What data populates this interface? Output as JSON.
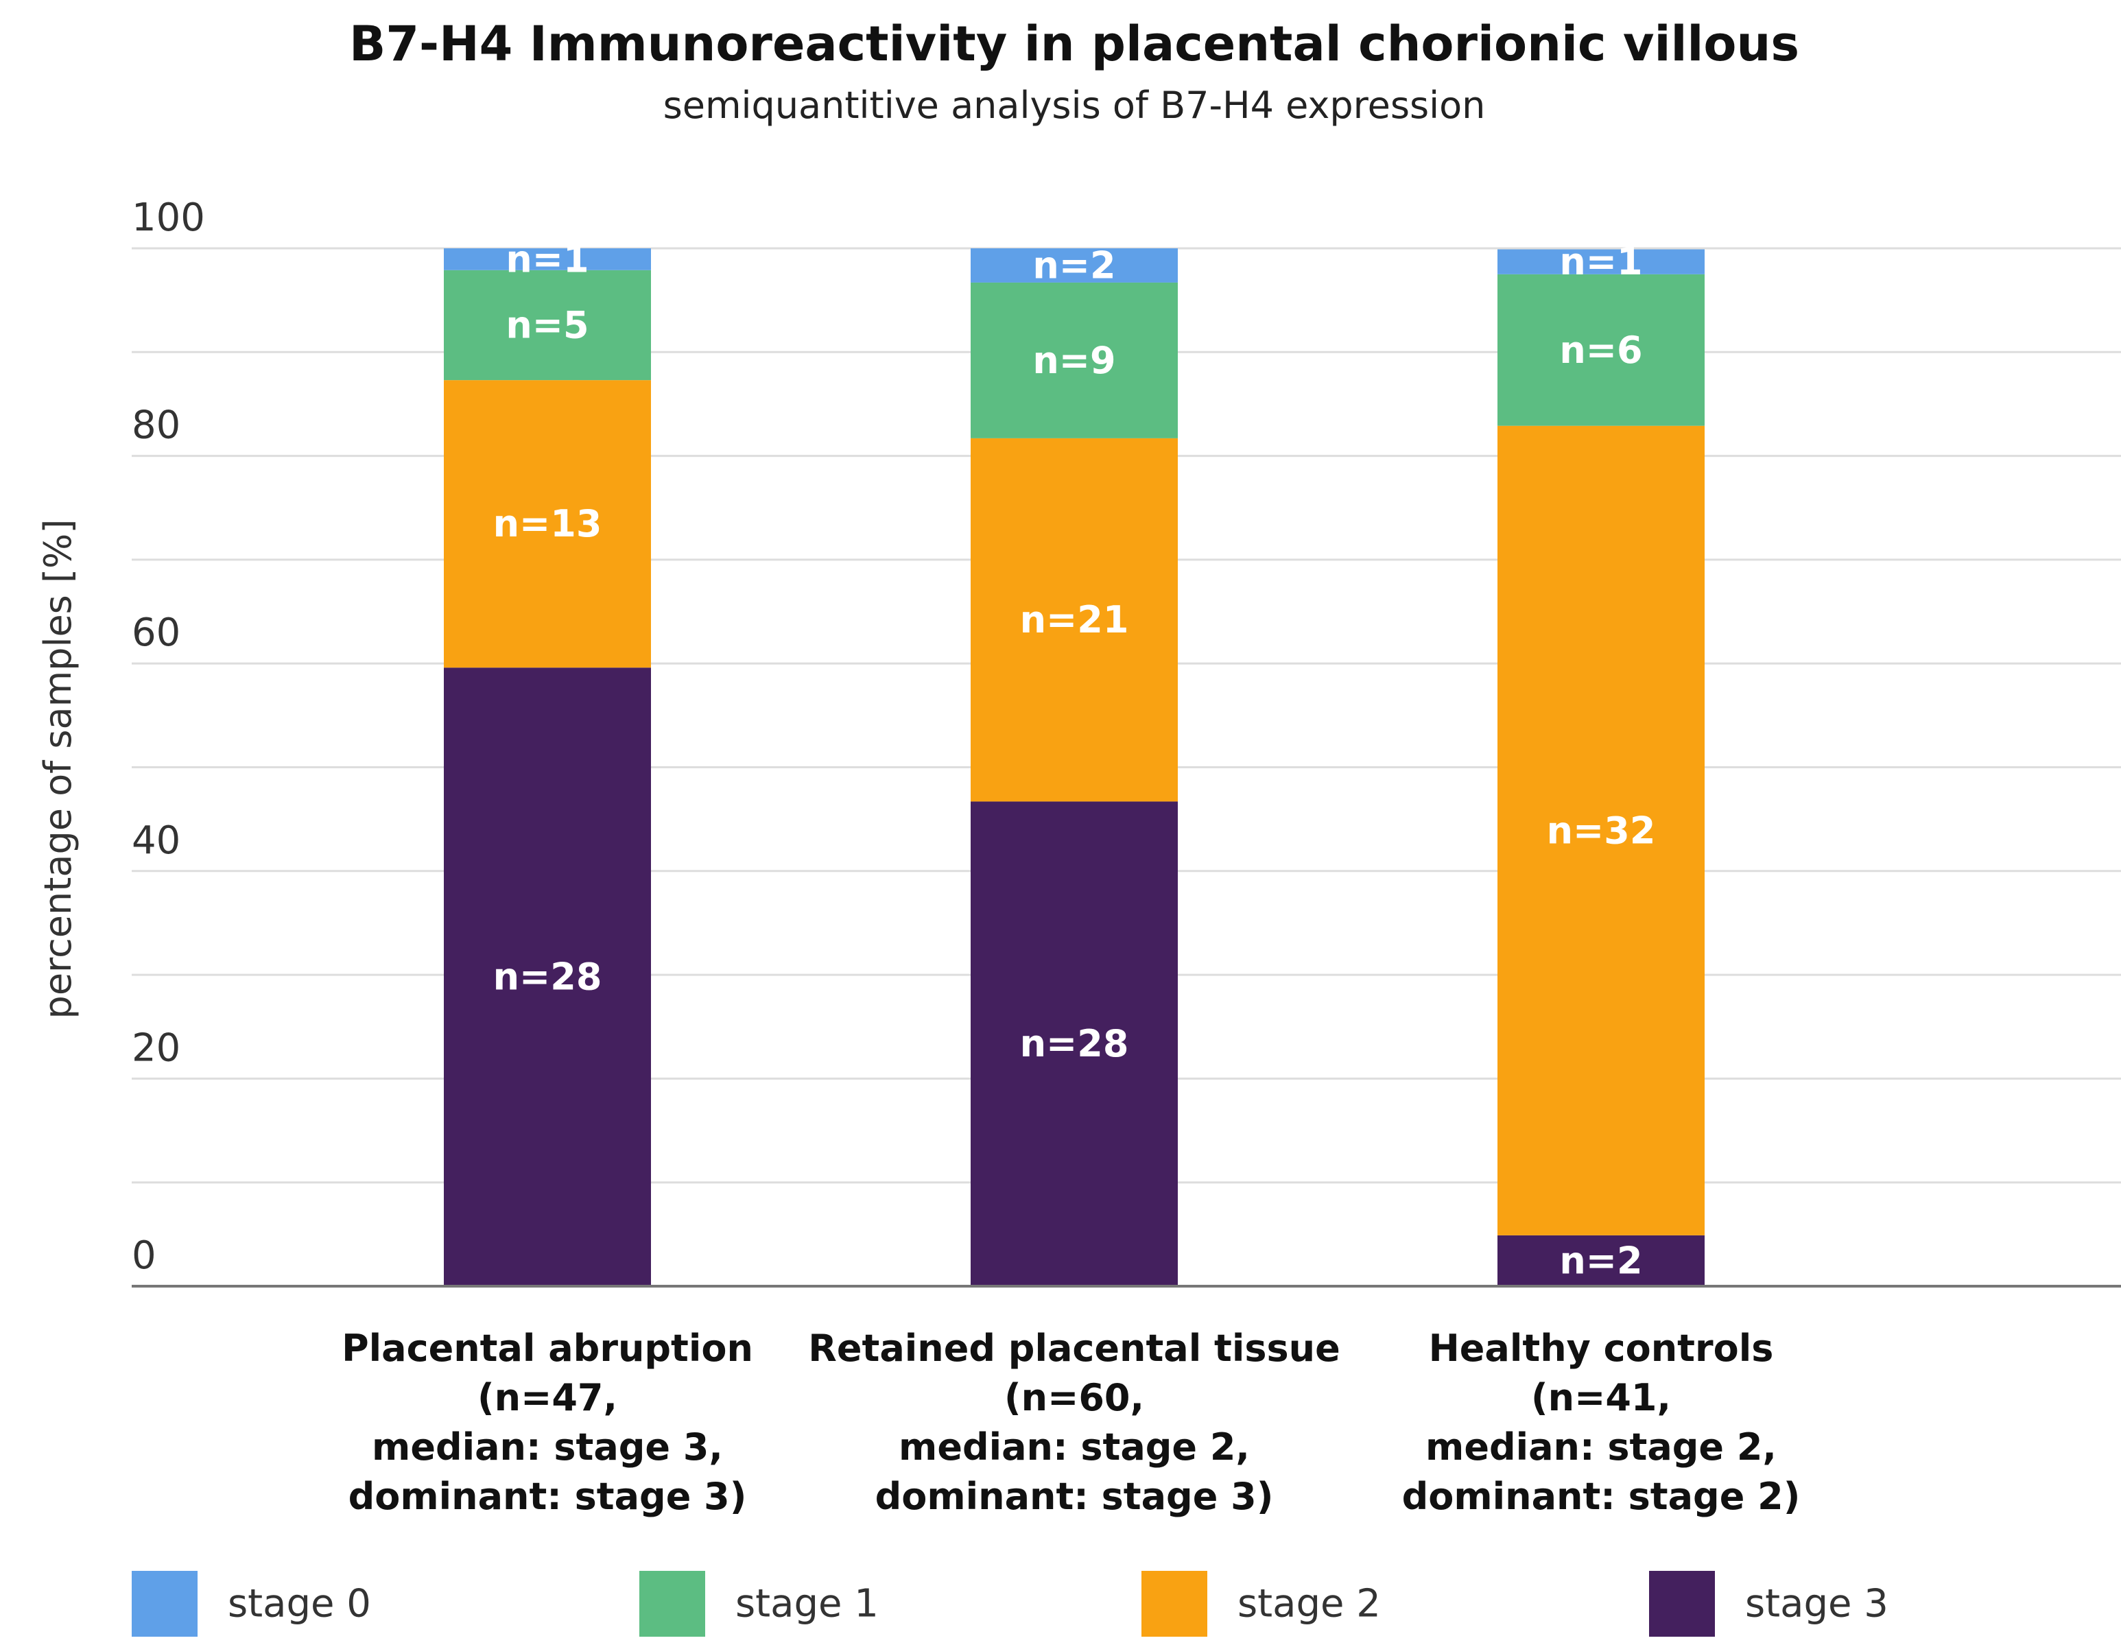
{
  "chart_data": {
    "type": "bar",
    "stacked": true,
    "title": "B7-H4 Immunoreactivity in placental chorionic villous",
    "subtitle": "semiquantitive analysis of B7-H4 expression",
    "ylabel": "percentage of samples [%]",
    "xlabel": "",
    "ylim": [
      0,
      100
    ],
    "yticks": [
      0,
      20,
      40,
      60,
      80,
      100
    ],
    "grid": true,
    "legend_position": "bottom",
    "categories": [
      [
        "Placental abruption",
        "(n=47,",
        "median: stage 3,",
        "dominant: stage 3)"
      ],
      [
        "Retained placental tissue",
        "(n=60,",
        "median: stage 2,",
        "dominant: stage 3)"
      ],
      [
        "Healthy controls",
        "(n=41,",
        "median: stage 2,",
        "dominant: stage 2)"
      ]
    ],
    "series": [
      {
        "name": "stage 3",
        "color": "#44205e",
        "values": [
          59.6,
          46.7,
          4.9
        ],
        "labels": [
          "n=28",
          "n=28",
          "n=2"
        ]
      },
      {
        "name": "stage 2",
        "color": "#f9a212",
        "values": [
          27.7,
          35.0,
          78.0
        ],
        "labels": [
          "n=13",
          "n=21",
          "n=32"
        ]
      },
      {
        "name": "stage 1",
        "color": "#5cbd82",
        "values": [
          10.6,
          15.0,
          14.6
        ],
        "labels": [
          "n=5",
          "n=9",
          "n=6"
        ]
      },
      {
        "name": "stage 0",
        "color": "#5fa0e8",
        "values": [
          2.1,
          3.3,
          2.4
        ],
        "labels": [
          "n=1",
          "n=2",
          "n=1"
        ]
      }
    ],
    "legend_order": [
      "stage 0",
      "stage 1",
      "stage 2",
      "stage 3"
    ],
    "gridline_color": "#dddddd",
    "axis_color": "#777777"
  }
}
